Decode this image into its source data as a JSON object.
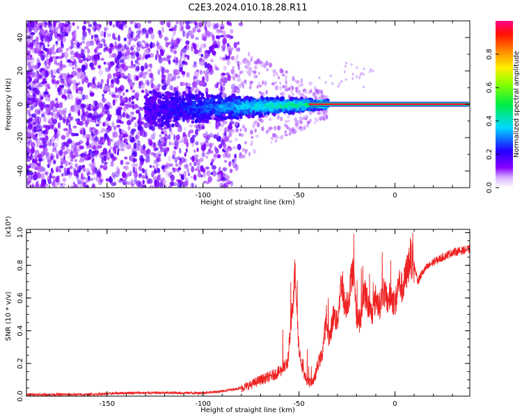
{
  "title": "C2E3.2024.010.18.28.R11",
  "chart_data": [
    {
      "type": "heatmap",
      "xlabel": "Height of straight line (km)",
      "ylabel": "Frequency (Hz)",
      "xlim": [
        -192,
        39
      ],
      "ylim": [
        -50,
        50
      ],
      "xticks": [
        -150,
        -100,
        -50,
        0
      ],
      "yticks": [
        -40,
        -20,
        0,
        20,
        40
      ],
      "colorbar": {
        "label": "Normalized spectral amplitude",
        "range": [
          0,
          1
        ],
        "ticks": [
          "0.0",
          "0.2",
          "0.4",
          "0.6",
          "0.8"
        ],
        "colormap": "rainbow: white-violet (0) to blue, cyan, green, yellow, orange, red, magenta (1)"
      },
      "features": [
        {
          "x_range": [
            -192,
            -80
          ],
          "description": "noise",
          "amplitude": 0.1
        },
        {
          "x_range": [
            -130,
            -35
          ],
          "description": "broadening band around 0 Hz",
          "amplitude": 0.35
        },
        {
          "x_range": [
            -45,
            39
          ],
          "description": "narrow line at ~0 Hz",
          "amplitude": 0.95
        }
      ]
    },
    {
      "type": "line",
      "xlabel": "Height of straight line (km)",
      "ylabel": "SNR (10 * v/v)",
      "y_multiplier": "(x10⁴)",
      "xlim": [
        -192,
        39
      ],
      "ylim": [
        0,
        1.02
      ],
      "xticks": [
        -150,
        -100,
        -50,
        0
      ],
      "yticks": [
        "0.0",
        "0.2",
        "0.4",
        "0.6",
        "0.8",
        "1.0"
      ],
      "grid": false,
      "series": [
        {
          "color": "#ee2222",
          "x": [
            -192,
            -180,
            -160,
            -140,
            -120,
            -100,
            -90,
            -80,
            -75,
            -70,
            -65,
            -60,
            -56,
            -54,
            -52,
            -50,
            -47,
            -45,
            -42,
            -40,
            -38,
            -36,
            -34,
            -32,
            -30,
            -28,
            -26,
            -24,
            -22,
            -20,
            -18,
            -16,
            -14,
            -12,
            -10,
            -8,
            -6,
            -4,
            -2,
            0,
            2,
            4,
            6,
            8,
            10,
            12,
            14,
            16,
            18,
            20,
            25,
            30,
            35,
            39
          ],
          "y": [
            0.01,
            0.01,
            0.01,
            0.02,
            0.02,
            0.02,
            0.03,
            0.05,
            0.07,
            0.1,
            0.12,
            0.15,
            0.2,
            0.45,
            0.78,
            0.28,
            0.12,
            0.08,
            0.1,
            0.2,
            0.25,
            0.45,
            0.35,
            0.5,
            0.45,
            0.7,
            0.55,
            0.6,
            0.8,
            0.5,
            0.45,
            0.65,
            0.55,
            0.5,
            0.6,
            0.55,
            0.65,
            0.58,
            0.62,
            0.55,
            0.7,
            0.65,
            0.75,
            0.85,
            0.8,
            0.7,
            0.75,
            0.78,
            0.8,
            0.82,
            0.85,
            0.88,
            0.89,
            0.9
          ]
        }
      ]
    }
  ]
}
